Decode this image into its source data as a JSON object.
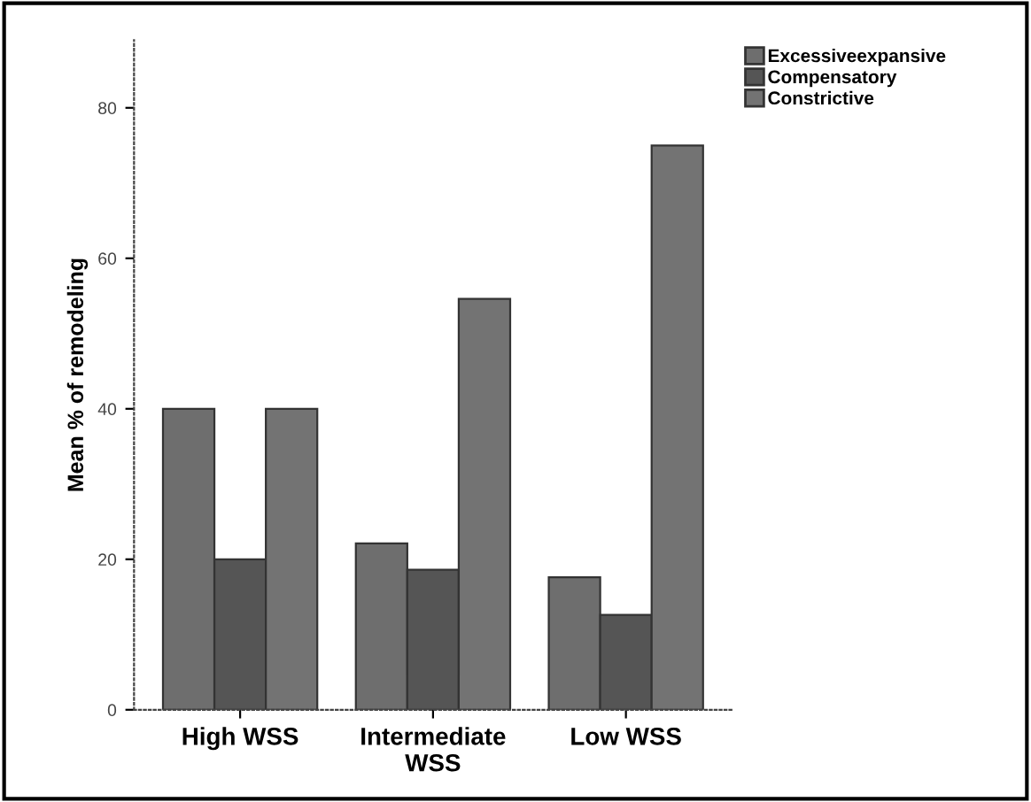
{
  "chart_data": {
    "type": "bar",
    "ylabel": "Mean % of remodeling",
    "categories": [
      "High WSS",
      "Intermediate\nWSS",
      "Low WSS"
    ],
    "series": [
      {
        "name": "Excessiveexpansive",
        "color": "#6e6e6e",
        "values": [
          40,
          22.1,
          17.6
        ]
      },
      {
        "name": "Compensatory",
        "color": "#555555",
        "values": [
          20,
          18.6,
          12.6
        ]
      },
      {
        "name": "Constrictive",
        "color": "#737373",
        "values": [
          40,
          54.6,
          75.0
        ]
      }
    ],
    "ylim": [
      0,
      89
    ],
    "yticks": [
      0,
      20,
      40,
      60,
      80
    ],
    "grid": false,
    "legend": "top right"
  }
}
